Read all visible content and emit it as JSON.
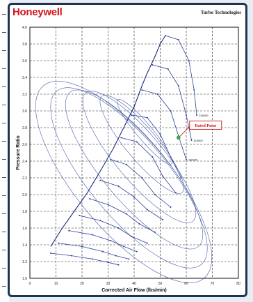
{
  "header": {
    "brand": "Honeywell",
    "subtitle": "Turbo Technologies"
  },
  "chart_data": {
    "type": "line",
    "title": "",
    "xlabel": "Corrected Air Flow (lbs/min)",
    "ylabel": "Pressure Ratio",
    "xlim": [
      0,
      80
    ],
    "ylim": [
      1.0,
      4.0
    ],
    "x_ticks": [
      0,
      10,
      20,
      30,
      40,
      50,
      60,
      70,
      80
    ],
    "y_ticks": [
      1.0,
      1.2,
      1.4,
      1.6,
      1.8,
      2.0,
      2.2,
      2.4,
      2.6,
      2.8,
      3.0,
      3.2,
      3.4,
      3.6,
      3.8,
      4.0
    ],
    "grid": true,
    "surge_line": {
      "x": [
        8,
        12,
        17,
        22,
        27,
        32,
        36,
        40,
        43,
        45,
        48,
        50,
        52
      ],
      "y": [
        1.38,
        1.58,
        1.8,
        2.02,
        2.28,
        2.55,
        2.8,
        3.05,
        3.3,
        3.45,
        3.65,
        3.8,
        3.9
      ]
    },
    "speed_lines": [
      {
        "label": "126000",
        "x": [
          52,
          57,
          61,
          63,
          64
        ],
        "y": [
          3.9,
          3.85,
          3.6,
          3.25,
          2.95
        ]
      },
      {
        "label": "118000",
        "x": [
          47,
          53,
          57,
          60,
          62
        ],
        "y": [
          3.55,
          3.5,
          3.3,
          2.95,
          2.65
        ]
      },
      {
        "label": "110000",
        "x": [
          43,
          49,
          54,
          57,
          60
        ],
        "y": [
          3.25,
          3.2,
          3.0,
          2.7,
          2.42
        ]
      },
      {
        "label": "",
        "x": [
          39,
          45,
          50,
          54,
          58
        ],
        "y": [
          2.95,
          2.92,
          2.72,
          2.45,
          2.2
        ]
      },
      {
        "label": "",
        "x": [
          35,
          41,
          47,
          51,
          56
        ],
        "y": [
          2.68,
          2.63,
          2.45,
          2.22,
          2.02
        ]
      },
      {
        "label": "",
        "x": [
          31,
          37,
          43,
          48,
          54
        ],
        "y": [
          2.42,
          2.36,
          2.2,
          2.0,
          1.85
        ]
      },
      {
        "label": "",
        "x": [
          27,
          34,
          40,
          45,
          51
        ],
        "y": [
          2.17,
          2.1,
          1.97,
          1.82,
          1.7
        ]
      },
      {
        "label": "",
        "x": [
          23,
          30,
          37,
          42,
          48
        ],
        "y": [
          1.95,
          1.88,
          1.77,
          1.65,
          1.55
        ]
      },
      {
        "label": "",
        "x": [
          19,
          27,
          34,
          39,
          45
        ],
        "y": [
          1.75,
          1.69,
          1.6,
          1.5,
          1.42
        ]
      },
      {
        "label": "",
        "x": [
          15,
          24,
          31,
          36,
          41
        ],
        "y": [
          1.57,
          1.52,
          1.45,
          1.38,
          1.32
        ]
      },
      {
        "label": "",
        "x": [
          11,
          20,
          28,
          33,
          38
        ],
        "y": [
          1.42,
          1.38,
          1.32,
          1.27,
          1.23
        ]
      },
      {
        "label": "",
        "x": [
          8,
          16,
          24,
          30,
          34
        ],
        "y": [
          1.3,
          1.27,
          1.23,
          1.19,
          1.16
        ]
      }
    ],
    "efficiency_islands": [
      {
        "label": "",
        "cx": 44,
        "cy": 2.75,
        "rx": 3,
        "ry": 0.5
      },
      {
        "label": "",
        "cx": 43,
        "cy": 2.6,
        "rx": 6,
        "ry": 0.75
      },
      {
        "label": "",
        "cx": 42,
        "cy": 2.45,
        "rx": 9,
        "ry": 1.0
      },
      {
        "label": "",
        "cx": 40,
        "cy": 2.3,
        "rx": 12,
        "ry": 1.2
      },
      {
        "label": "",
        "cx": 38,
        "cy": 2.2,
        "rx": 15,
        "ry": 1.35
      },
      {
        "label": "",
        "cx": 36,
        "cy": 2.15,
        "rx": 18,
        "ry": 1.5
      }
    ],
    "rated_point": {
      "label": "Rated Point",
      "x": 57,
      "y": 2.68
    }
  }
}
